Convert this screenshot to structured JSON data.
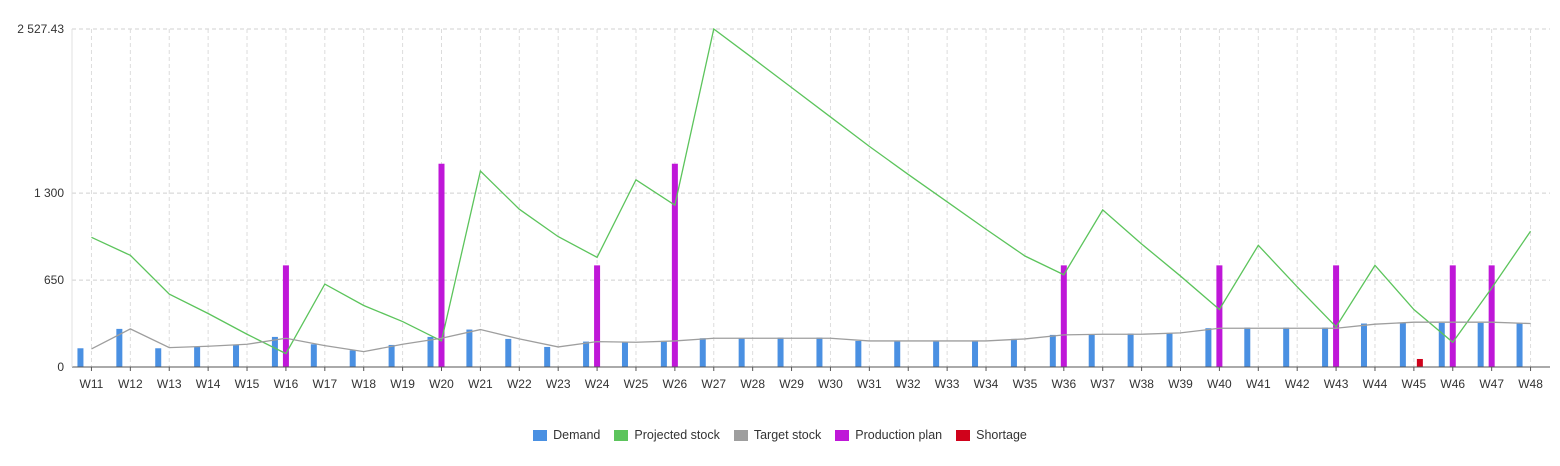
{
  "chart_data": {
    "type": "bar",
    "categories": [
      "W11",
      "W12",
      "W13",
      "W14",
      "W15",
      "W16",
      "W17",
      "W18",
      "W19",
      "W20",
      "W21",
      "W22",
      "W23",
      "W24",
      "W25",
      "W26",
      "W27",
      "W28",
      "W29",
      "W30",
      "W31",
      "W32",
      "W33",
      "W34",
      "W35",
      "W36",
      "W37",
      "W38",
      "W39",
      "W40",
      "W41",
      "W42",
      "W43",
      "W44",
      "W45",
      "W46",
      "W47",
      "W48"
    ],
    "ylim": [
      0,
      2527.43
    ],
    "yticks": [
      0,
      650,
      1300,
      2527.43
    ],
    "ytick_labels": [
      "0",
      "650",
      "1 300",
      "2 527.43"
    ],
    "grid": true,
    "legend_position": "bottom",
    "series": [
      {
        "name": "Demand",
        "type": "bar",
        "color": "#4a90e2",
        "values": [
          140,
          285,
          140,
          150,
          165,
          225,
          170,
          125,
          165,
          225,
          280,
          210,
          150,
          190,
          185,
          195,
          215,
          215,
          220,
          220,
          195,
          195,
          195,
          195,
          210,
          240,
          245,
          250,
          255,
          290,
          295,
          295,
          295,
          325,
          330,
          330,
          330,
          330
        ]
      },
      {
        "name": "Production plan",
        "type": "bar",
        "color": "#bf17d8",
        "values": [
          0,
          0,
          0,
          0,
          0,
          760,
          0,
          0,
          0,
          1520,
          0,
          0,
          0,
          760,
          0,
          1520,
          0,
          0,
          0,
          0,
          0,
          0,
          0,
          0,
          0,
          760,
          0,
          0,
          0,
          760,
          0,
          0,
          760,
          0,
          0,
          760,
          760,
          0
        ]
      },
      {
        "name": "Shortage",
        "type": "bar",
        "color": "#d0021b",
        "values": [
          0,
          0,
          0,
          0,
          0,
          0,
          0,
          0,
          0,
          0,
          0,
          0,
          0,
          0,
          0,
          0,
          0,
          0,
          0,
          0,
          0,
          0,
          0,
          0,
          0,
          0,
          0,
          0,
          0,
          0,
          0,
          0,
          0,
          0,
          60,
          0,
          0,
          0
        ]
      },
      {
        "name": "Projected stock",
        "type": "line",
        "color": "#5cc45c",
        "values": [
          970,
          835,
          545,
          400,
          245,
          100,
          620,
          460,
          340,
          195,
          1465,
          1180,
          975,
          820,
          1400,
          1210,
          2527.43,
          2310,
          2090,
          1870,
          1650,
          1440,
          1235,
          1030,
          830,
          690,
          1175,
          920,
          680,
          430,
          910,
          600,
          300,
          760,
          430,
          185,
          590,
          1015
        ]
      },
      {
        "name": "Target stock",
        "type": "line",
        "color": "#9e9e9e",
        "values": [
          135,
          285,
          145,
          155,
          170,
          215,
          160,
          115,
          170,
          215,
          280,
          210,
          150,
          190,
          185,
          195,
          215,
          215,
          215,
          215,
          195,
          195,
          195,
          195,
          210,
          240,
          245,
          245,
          255,
          290,
          290,
          290,
          290,
          320,
          335,
          335,
          335,
          325
        ]
      }
    ]
  },
  "legend": [
    {
      "label": "Demand",
      "color": "#4a90e2"
    },
    {
      "label": "Projected stock",
      "color": "#5cc45c"
    },
    {
      "label": "Target stock",
      "color": "#9e9e9e"
    },
    {
      "label": "Production plan",
      "color": "#bf17d8"
    },
    {
      "label": "Shortage",
      "color": "#d0021b"
    }
  ]
}
